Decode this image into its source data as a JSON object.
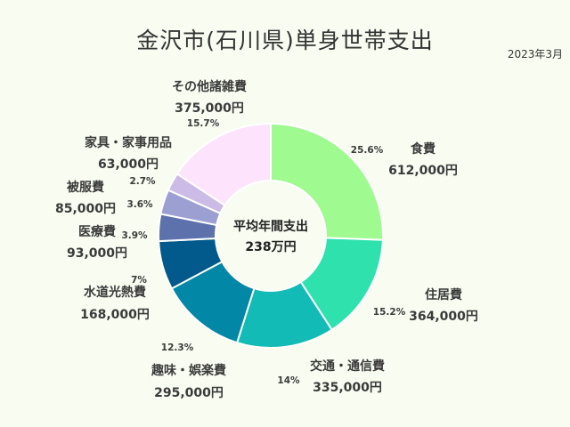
{
  "title": "金沢市(石川県)単身世帯支出",
  "date": "2023年3月",
  "chart_data": {
    "type": "pie",
    "title": "金沢市(石川県)単身世帯支出",
    "subtitle": "2023年3月",
    "center": {
      "line1": "平均年間支出",
      "line2": "238万円"
    },
    "slices": [
      {
        "label": "食費",
        "amount": "612,000円",
        "value": 612000,
        "percent": "25.6%",
        "color": "#9ffa8f"
      },
      {
        "label": "住居費",
        "amount": "364,000円",
        "value": 364000,
        "percent": "15.2%",
        "color": "#2fe2ad"
      },
      {
        "label": "交通・通信費",
        "amount": "335,000円",
        "value": 335000,
        "percent": "14%",
        "color": "#12bbb6"
      },
      {
        "label": "趣味・娯楽費",
        "amount": "295,000円",
        "value": 295000,
        "percent": "12.3%",
        "color": "#0387a6"
      },
      {
        "label": "水道光熱費",
        "amount": "168,000円",
        "value": 168000,
        "percent": "7%",
        "color": "#025a8c"
      },
      {
        "label": "医療費",
        "amount": "93,000円",
        "value": 93000,
        "percent": "3.9%",
        "color": "#5d72ad"
      },
      {
        "label": "被服費",
        "amount": "85,000円",
        "value": 85000,
        "percent": "3.6%",
        "color": "#9c9fd2"
      },
      {
        "label": "家具・家事用品",
        "amount": "63,000円",
        "value": 63000,
        "percent": "2.7%",
        "color": "#cbbbe6"
      },
      {
        "label": "その他諸雑費",
        "amount": "375,000円",
        "value": 375000,
        "percent": "15.7%",
        "color": "#fde3fb"
      }
    ]
  }
}
